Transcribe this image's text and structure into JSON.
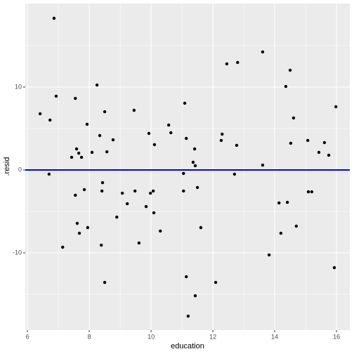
{
  "chart_data": {
    "type": "scatter",
    "x_label": "education",
    "y_label": ".resid",
    "x": [
      6.86,
      6.41,
      6.73,
      6.93,
      6.7,
      7.14,
      7.55,
      7.43,
      7.59,
      7.66,
      7.75,
      7.93,
      8.09,
      7.84,
      7.55,
      7.61,
      7.68,
      7.95,
      8.25,
      8.34,
      8.5,
      8.57,
      8.77,
      8.43,
      8.41,
      8.39,
      8.5,
      8.89,
      9.07,
      9.23,
      9.45,
      9.48,
      9.61,
      9.84,
      9.93,
      9.98,
      10.07,
      10.11,
      10.09,
      10.3,
      10.57,
      10.64,
      11.09,
      11.05,
      11.05,
      11.14,
      11.14,
      11.2,
      11.36,
      11.43,
      11.41,
      11.5,
      11.61,
      11.43,
      12.09,
      12.27,
      12.3,
      12.45,
      12.8,
      12.7,
      12.77,
      13.61,
      13.61,
      13.82,
      14.14,
      14.2,
      14.36,
      14.41,
      14.5,
      14.52,
      14.61,
      14.7,
      15.07,
      15.09,
      15.2,
      15.43,
      15.61,
      15.75,
      15.98,
      15.93
    ],
    "values": [
      18.3,
      6.78,
      6.02,
      8.9,
      -0.51,
      -9.32,
      8.64,
      1.53,
      2.54,
      2.03,
      1.53,
      5.51,
      2.12,
      -2.37,
      -3.05,
      -6.44,
      -7.63,
      -6.95,
      10.25,
      4.15,
      7.03,
      2.2,
      3.64,
      -1.53,
      -2.54,
      -9.07,
      -13.56,
      -5.68,
      -2.8,
      -4.07,
      7.2,
      -2.54,
      -8.81,
      -4.41,
      4.41,
      -2.8,
      -2.54,
      3.05,
      -5.17,
      -7.37,
      5.42,
      4.49,
      8.05,
      -0.42,
      -2.54,
      3.81,
      -12.88,
      -17.63,
      0.93,
      0.51,
      2.54,
      -2.12,
      -6.95,
      -15.17,
      -13.56,
      3.56,
      4.32,
      12.8,
      12.97,
      -0.51,
      2.97,
      14.24,
      0.59,
      -10.25,
      -3.98,
      -7.63,
      10.08,
      -3.9,
      12.03,
      3.22,
      6.27,
      -6.78,
      3.56,
      -2.63,
      -2.63,
      2.12,
      3.3,
      1.78,
      7.63,
      -11.78
    ],
    "color": "#000000",
    "xlim": [
      5.93,
      16.43
    ],
    "ylim": [
      -19.32,
      20.08
    ],
    "xticks": [
      6,
      8,
      10,
      12,
      14,
      16
    ],
    "yticks": [
      -10,
      0,
      10
    ],
    "x_minor_grid": [
      7,
      9,
      11,
      13,
      15
    ],
    "y_minor_grid": [
      -15,
      -5,
      5,
      15
    ],
    "grid": true,
    "hline": {
      "value": 0,
      "color": "#0000ff"
    }
  }
}
